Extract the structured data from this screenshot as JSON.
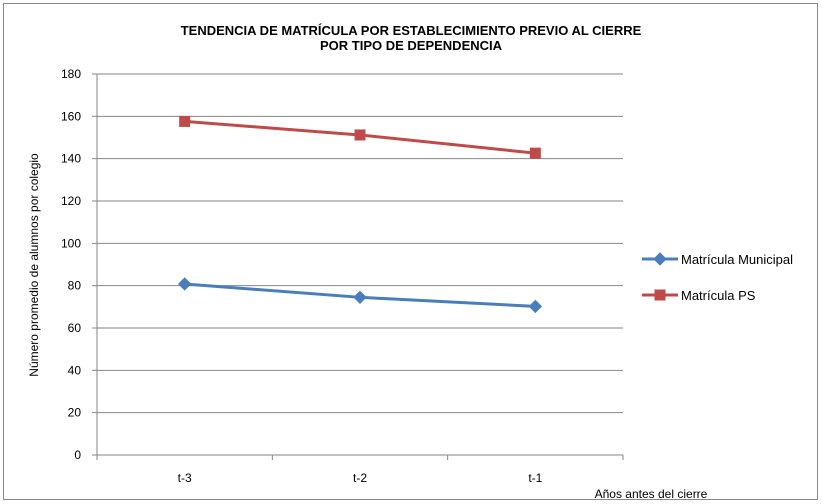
{
  "chart_data": {
    "type": "line",
    "title_line1": "TENDENCIA DE MATRÍCULA POR ESTABLECIMIENTO  PREVIO AL CIERRE",
    "title_line2": "POR TIPO DE DEPENDENCIA",
    "xlabel": "Años antes del cierre",
    "ylabel": "Número promedio de alumnos  por colegio",
    "categories": [
      "t-3",
      "t-2",
      "t-1"
    ],
    "ylim": [
      0,
      180
    ],
    "yticks": [
      0,
      20,
      40,
      60,
      80,
      100,
      120,
      140,
      160,
      180
    ],
    "grid": true,
    "legend_position": "right",
    "series": [
      {
        "name": "Matrícula Municipal",
        "values": [
          80.8,
          74.5,
          70.2
        ],
        "color": "#4a7ebb",
        "marker": "diamond"
      },
      {
        "name": "Matrícula PS",
        "values": [
          157.6,
          151.2,
          142.6
        ],
        "color": "#be4b48",
        "marker": "square"
      }
    ]
  }
}
